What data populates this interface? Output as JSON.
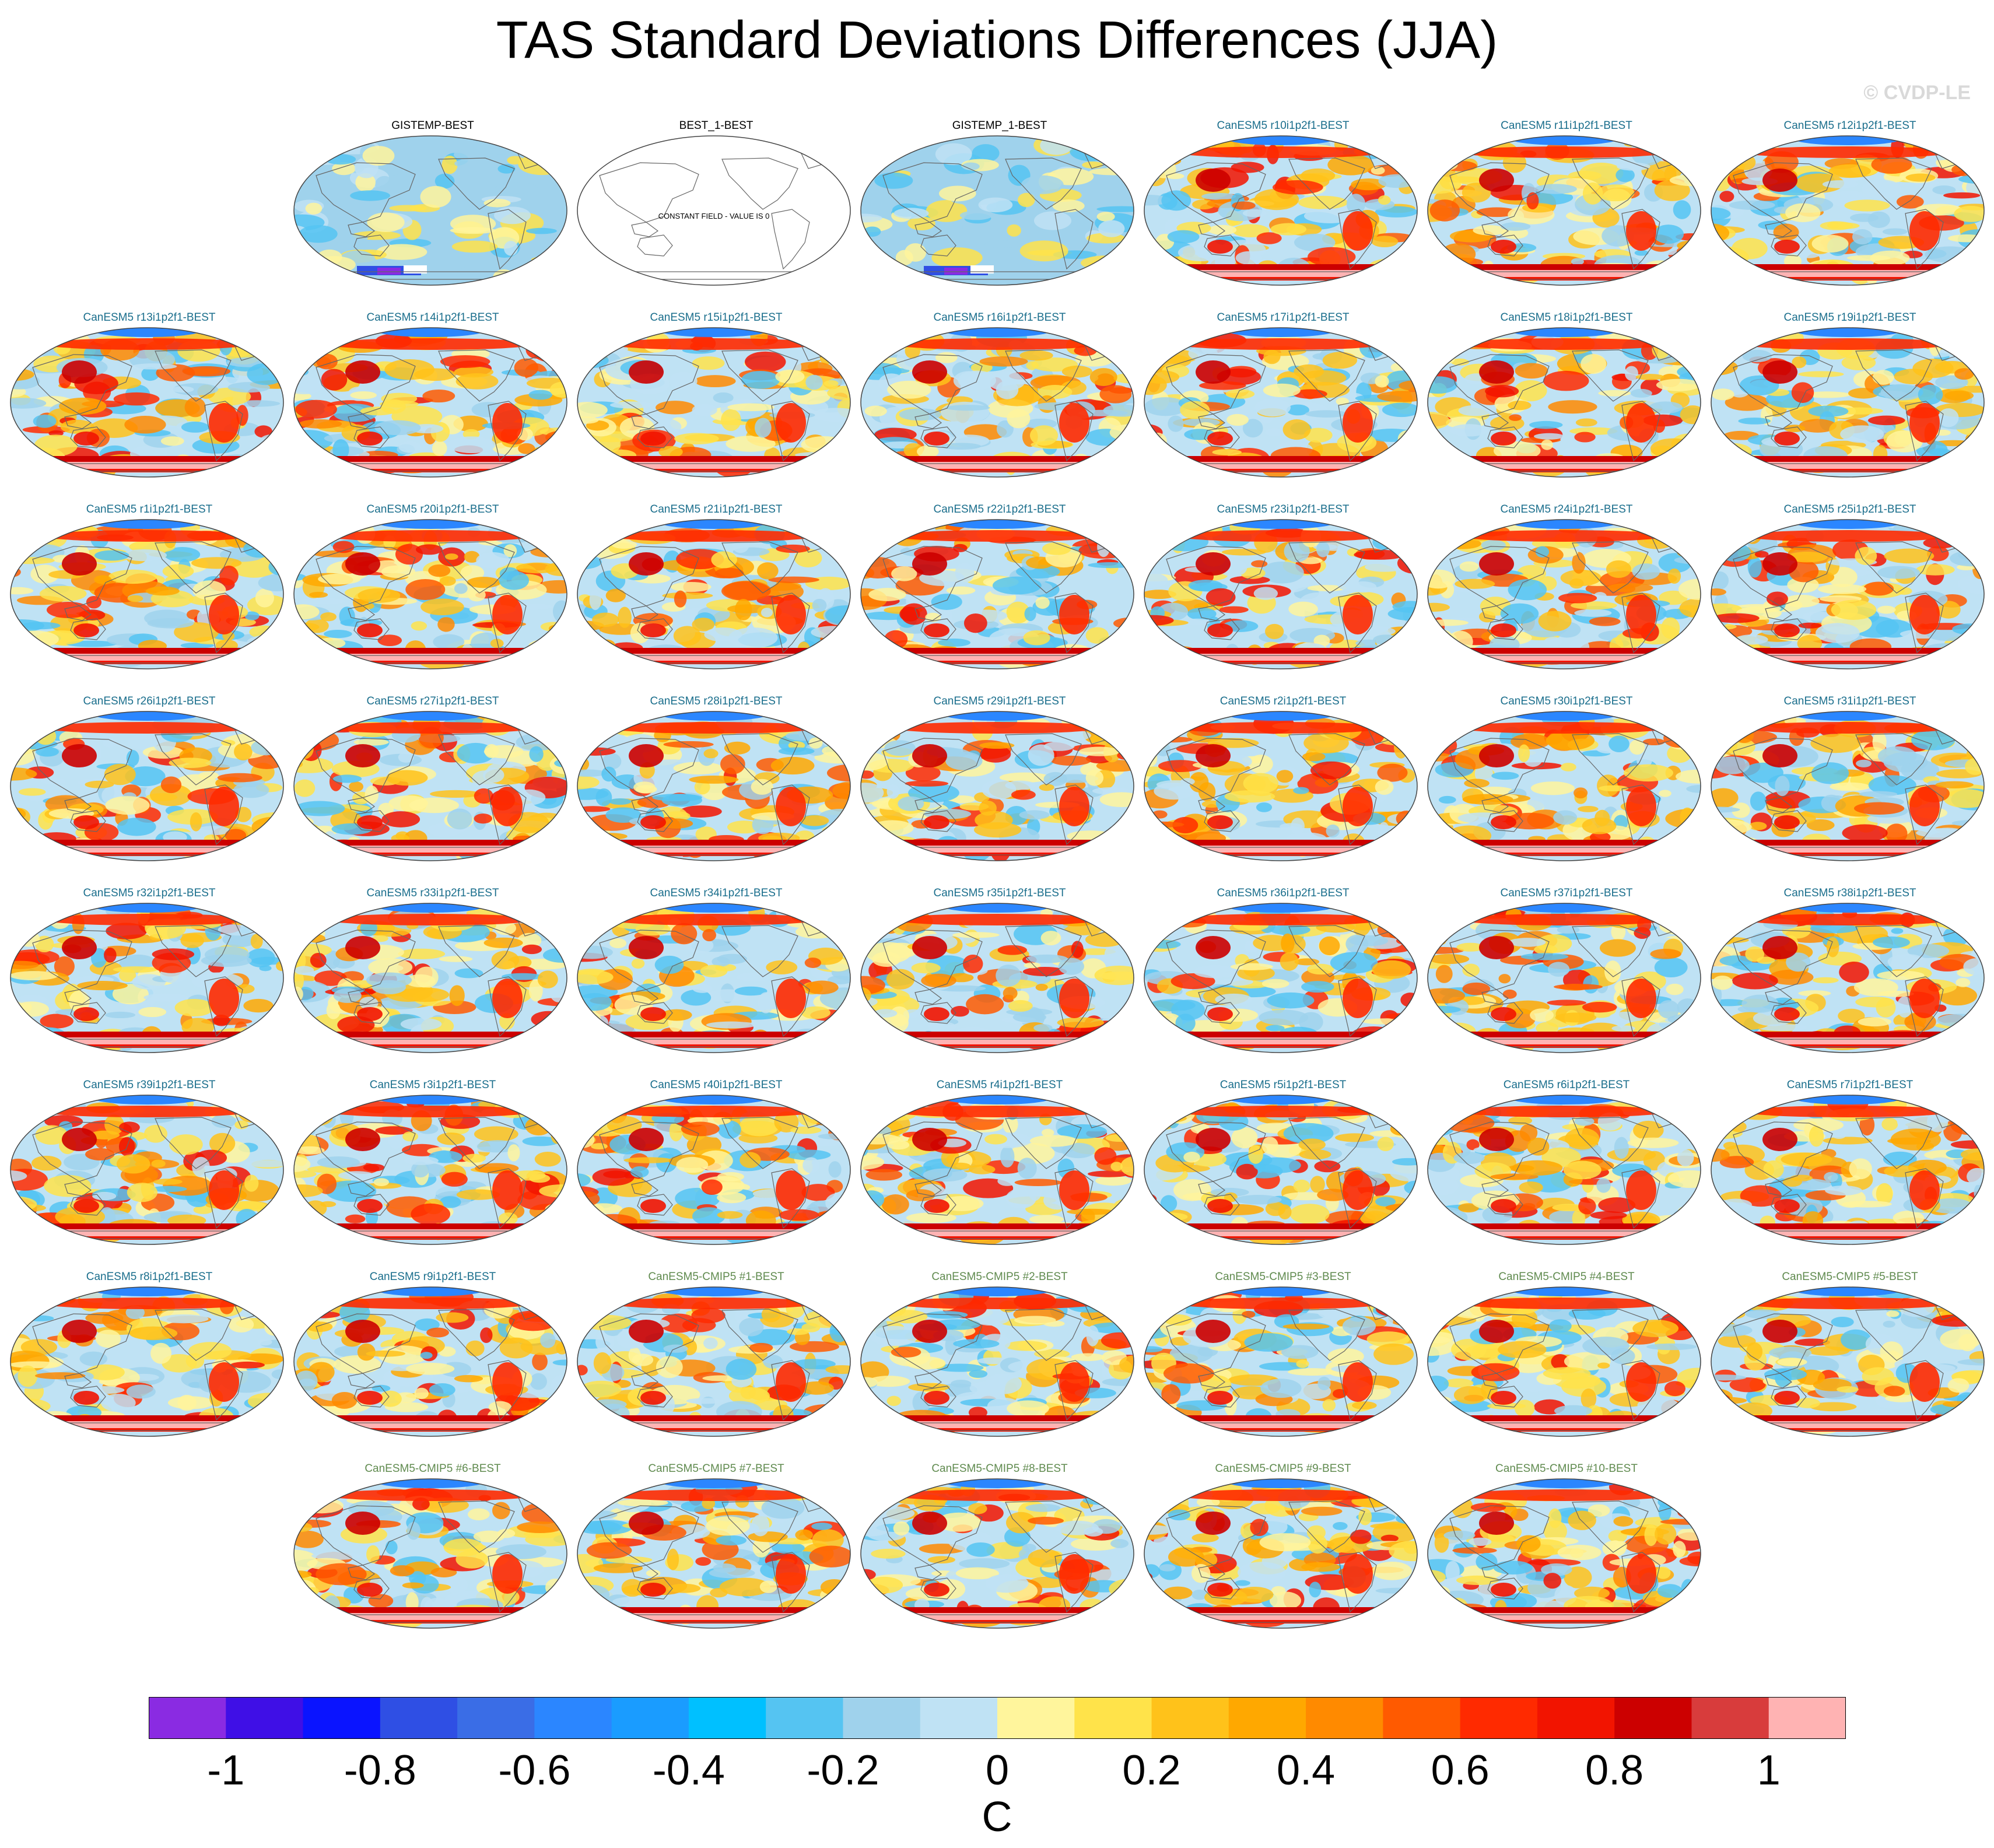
{
  "title": "TAS Standard Deviations Differences (JJA)",
  "copyright": "© CVDP-LE",
  "colors": {
    "land_outline": "#666666",
    "label_obs": "#000000",
    "label_member": "#1a6e8c",
    "label_cmip5": "#5f8a4e",
    "constant_field": "#ffffff"
  },
  "panels": [
    {
      "label": "GISTEMP-BEST",
      "kind": "obs",
      "row": 0,
      "col": 1
    },
    {
      "label": "BEST_1-BEST",
      "kind": "constant",
      "row": 0,
      "col": 2,
      "note": "CONSTANT FIELD - VALUE IS 0"
    },
    {
      "label": "GISTEMP_1-BEST",
      "kind": "obs",
      "row": 0,
      "col": 3
    },
    {
      "label": "CanESM5 r10i1p2f1-BEST",
      "kind": "member",
      "row": 0,
      "col": 4
    },
    {
      "label": "CanESM5 r11i1p2f1-BEST",
      "kind": "member",
      "row": 0,
      "col": 5
    },
    {
      "label": "CanESM5 r12i1p2f1-BEST",
      "kind": "member",
      "row": 0,
      "col": 6
    },
    {
      "label": "CanESM5 r13i1p2f1-BEST",
      "kind": "member",
      "row": 1,
      "col": 0
    },
    {
      "label": "CanESM5 r14i1p2f1-BEST",
      "kind": "member",
      "row": 1,
      "col": 1
    },
    {
      "label": "CanESM5 r15i1p2f1-BEST",
      "kind": "member",
      "row": 1,
      "col": 2
    },
    {
      "label": "CanESM5 r16i1p2f1-BEST",
      "kind": "member",
      "row": 1,
      "col": 3
    },
    {
      "label": "CanESM5 r17i1p2f1-BEST",
      "kind": "member",
      "row": 1,
      "col": 4
    },
    {
      "label": "CanESM5 r18i1p2f1-BEST",
      "kind": "member",
      "row": 1,
      "col": 5
    },
    {
      "label": "CanESM5 r19i1p2f1-BEST",
      "kind": "member",
      "row": 1,
      "col": 6
    },
    {
      "label": "CanESM5 r1i1p2f1-BEST",
      "kind": "member",
      "row": 2,
      "col": 0
    },
    {
      "label": "CanESM5 r20i1p2f1-BEST",
      "kind": "member",
      "row": 2,
      "col": 1
    },
    {
      "label": "CanESM5 r21i1p2f1-BEST",
      "kind": "member",
      "row": 2,
      "col": 2
    },
    {
      "label": "CanESM5 r22i1p2f1-BEST",
      "kind": "member",
      "row": 2,
      "col": 3
    },
    {
      "label": "CanESM5 r23i1p2f1-BEST",
      "kind": "member",
      "row": 2,
      "col": 4
    },
    {
      "label": "CanESM5 r24i1p2f1-BEST",
      "kind": "member",
      "row": 2,
      "col": 5
    },
    {
      "label": "CanESM5 r25i1p2f1-BEST",
      "kind": "member",
      "row": 2,
      "col": 6
    },
    {
      "label": "CanESM5 r26i1p2f1-BEST",
      "kind": "member",
      "row": 3,
      "col": 0
    },
    {
      "label": "CanESM5 r27i1p2f1-BEST",
      "kind": "member",
      "row": 3,
      "col": 1
    },
    {
      "label": "CanESM5 r28i1p2f1-BEST",
      "kind": "member",
      "row": 3,
      "col": 2
    },
    {
      "label": "CanESM5 r29i1p2f1-BEST",
      "kind": "member",
      "row": 3,
      "col": 3
    },
    {
      "label": "CanESM5 r2i1p2f1-BEST",
      "kind": "member",
      "row": 3,
      "col": 4
    },
    {
      "label": "CanESM5 r30i1p2f1-BEST",
      "kind": "member",
      "row": 3,
      "col": 5
    },
    {
      "label": "CanESM5 r31i1p2f1-BEST",
      "kind": "member",
      "row": 3,
      "col": 6
    },
    {
      "label": "CanESM5 r32i1p2f1-BEST",
      "kind": "member",
      "row": 4,
      "col": 0
    },
    {
      "label": "CanESM5 r33i1p2f1-BEST",
      "kind": "member",
      "row": 4,
      "col": 1
    },
    {
      "label": "CanESM5 r34i1p2f1-BEST",
      "kind": "member",
      "row": 4,
      "col": 2
    },
    {
      "label": "CanESM5 r35i1p2f1-BEST",
      "kind": "member",
      "row": 4,
      "col": 3
    },
    {
      "label": "CanESM5 r36i1p2f1-BEST",
      "kind": "member",
      "row": 4,
      "col": 4
    },
    {
      "label": "CanESM5 r37i1p2f1-BEST",
      "kind": "member",
      "row": 4,
      "col": 5
    },
    {
      "label": "CanESM5 r38i1p2f1-BEST",
      "kind": "member",
      "row": 4,
      "col": 6
    },
    {
      "label": "CanESM5 r39i1p2f1-BEST",
      "kind": "member",
      "row": 5,
      "col": 0
    },
    {
      "label": "CanESM5 r3i1p2f1-BEST",
      "kind": "member",
      "row": 5,
      "col": 1
    },
    {
      "label": "CanESM5 r40i1p2f1-BEST",
      "kind": "member",
      "row": 5,
      "col": 2
    },
    {
      "label": "CanESM5 r4i1p2f1-BEST",
      "kind": "member",
      "row": 5,
      "col": 3
    },
    {
      "label": "CanESM5 r5i1p2f1-BEST",
      "kind": "member",
      "row": 5,
      "col": 4
    },
    {
      "label": "CanESM5 r6i1p2f1-BEST",
      "kind": "member",
      "row": 5,
      "col": 5
    },
    {
      "label": "CanESM5 r7i1p2f1-BEST",
      "kind": "member",
      "row": 5,
      "col": 6
    },
    {
      "label": "CanESM5 r8i1p2f1-BEST",
      "kind": "member",
      "row": 6,
      "col": 0
    },
    {
      "label": "CanESM5 r9i1p2f1-BEST",
      "kind": "member",
      "row": 6,
      "col": 1
    },
    {
      "label": "CanESM5-CMIP5 #1-BEST",
      "kind": "cmip5",
      "row": 6,
      "col": 2
    },
    {
      "label": "CanESM5-CMIP5 #2-BEST",
      "kind": "cmip5",
      "row": 6,
      "col": 3
    },
    {
      "label": "CanESM5-CMIP5 #3-BEST",
      "kind": "cmip5",
      "row": 6,
      "col": 4
    },
    {
      "label": "CanESM5-CMIP5 #4-BEST",
      "kind": "cmip5",
      "row": 6,
      "col": 5
    },
    {
      "label": "CanESM5-CMIP5 #5-BEST",
      "kind": "cmip5",
      "row": 6,
      "col": 6
    },
    {
      "label": "CanESM5-CMIP5 #6-BEST",
      "kind": "cmip5",
      "row": 7,
      "col": 1
    },
    {
      "label": "CanESM5-CMIP5 #7-BEST",
      "kind": "cmip5",
      "row": 7,
      "col": 2
    },
    {
      "label": "CanESM5-CMIP5 #8-BEST",
      "kind": "cmip5",
      "row": 7,
      "col": 3
    },
    {
      "label": "CanESM5-CMIP5 #9-BEST",
      "kind": "cmip5",
      "row": 7,
      "col": 4
    },
    {
      "label": "CanESM5-CMIP5 #10-BEST",
      "kind": "cmip5",
      "row": 7,
      "col": 5
    }
  ],
  "colorbar": {
    "units": "C",
    "colors": [
      "#8a2be2",
      "#3f0fe6",
      "#0a14ff",
      "#2f4fe4",
      "#3a6de6",
      "#2b86ff",
      "#1a9cff",
      "#00c0ff",
      "#55c4f2",
      "#9fd2ec",
      "#bfe2f4",
      "#fff59c",
      "#ffe34a",
      "#ffc21a",
      "#ffa800",
      "#ff8a00",
      "#ff5a00",
      "#ff2a00",
      "#f21400",
      "#cc0000",
      "#d83c3c",
      "#ffb3b3"
    ],
    "tick_labels": [
      "-1",
      "-0.8",
      "-0.6",
      "-0.4",
      "-0.2",
      "0",
      "0.2",
      "0.4",
      "0.6",
      "0.8",
      "1"
    ],
    "tick_values": [
      -1,
      -0.8,
      -0.6,
      -0.4,
      -0.2,
      0,
      0.2,
      0.4,
      0.6,
      0.8,
      1
    ],
    "range": [
      -1.1,
      1.1
    ]
  }
}
